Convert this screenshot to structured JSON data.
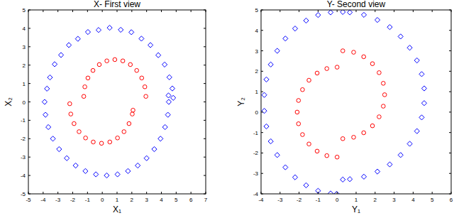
{
  "chart_data": [
    {
      "type": "scatter",
      "title": "X- First view",
      "x_label": "X₁",
      "y_label": "X₂",
      "xlim": [
        -5,
        7
      ],
      "ylim": [
        -5,
        5
      ],
      "xticks": [
        -5,
        -4,
        -3,
        -2,
        -1,
        0,
        1,
        2,
        3,
        4,
        5,
        6,
        7
      ],
      "yticks": [
        -5,
        -4,
        -3,
        -2,
        -1,
        0,
        1,
        2,
        3,
        4,
        5
      ],
      "grid": false,
      "series": [
        {
          "color": "#0000ff",
          "marker": "diamond",
          "x": [
            -3.74,
            -3.54,
            -3.22,
            -2.79,
            -2.26,
            -1.65,
            -0.97,
            -0.25,
            0.5,
            1.25,
            1.97,
            2.65,
            3.26,
            3.79,
            4.22,
            4.54,
            4.74,
            4.8,
            -3.9,
            -3.84,
            -3.65,
            -3.34,
            -2.92,
            -2.4,
            -1.8,
            -1.14,
            -0.43,
            0.3,
            1.03,
            1.74,
            2.4,
            3.0,
            3.52,
            3.94,
            4.25,
            4.44,
            4.5,
            4.48
          ],
          "values": [
            0.72,
            1.33,
            2.05,
            2.55,
            3.09,
            3.43,
            3.8,
            3.91,
            4.03,
            3.92,
            3.79,
            3.44,
            3.09,
            2.54,
            2.03,
            1.34,
            0.73,
            0.22,
            0,
            -0.7,
            -1.37,
            -2.0,
            -2.57,
            -3.06,
            -3.46,
            -3.76,
            -3.94,
            -4.0,
            -3.94,
            -3.76,
            -3.46,
            -3.06,
            -2.57,
            -2.0,
            -1.37,
            -0.7,
            0,
            0.35
          ]
        },
        {
          "color": "#ff0000",
          "marker": "circle",
          "x": [
            -1.25,
            -1.18,
            -0.97,
            -0.63,
            -0.2,
            0.31,
            0.85,
            1.39,
            1.9,
            2.33,
            2.67,
            2.88,
            2.95,
            -2.2,
            -2.13,
            -1.91,
            -1.57,
            -1.13,
            -0.61,
            -0.05,
            0.51,
            1.03,
            1.47,
            1.81,
            2.03,
            2.08
          ],
          "values": [
            0.3,
            0.82,
            1.3,
            1.71,
            2.03,
            2.23,
            2.3,
            2.23,
            2.03,
            1.71,
            1.3,
            0.82,
            0.3,
            -0.1,
            -0.66,
            -1.18,
            -1.62,
            -1.96,
            -2.18,
            -2.25,
            -2.18,
            -1.96,
            -1.62,
            -1.18,
            -0.66,
            -0.45
          ]
        }
      ]
    },
    {
      "type": "scatter",
      "title": "Y- Second view",
      "x_label": "Y₁",
      "y_label": "Y₂",
      "xlim": [
        -4,
        6
      ],
      "ylim": [
        -4,
        5
      ],
      "xticks": [
        -4,
        -3,
        -2,
        -1,
        0,
        1,
        2,
        3,
        4,
        5,
        6
      ],
      "yticks": [
        -4,
        -3,
        -2,
        -1,
        0,
        1,
        2,
        3,
        4,
        5
      ],
      "grid": false,
      "series": [
        {
          "color": "#0000ff",
          "marker": "diamond",
          "x": [
            -0.34,
            -1.0,
            -1.63,
            -2.21,
            -2.72,
            -3.15,
            -3.49,
            -3.72,
            -3.83,
            -3.83,
            -3.72,
            -3.49,
            -3.15,
            -2.72,
            -2.21,
            -1.63,
            -1.0,
            -0.34,
            -0.02,
            0.3,
            0.67,
            1.41,
            2.12,
            2.77,
            3.34,
            3.82,
            4.2,
            4.45,
            4.58,
            4.58,
            4.45,
            4.2,
            3.82,
            3.34,
            2.77,
            2.12,
            1.41,
            0.67,
            0.3
          ],
          "values": [
            4.88,
            4.75,
            4.48,
            4.09,
            3.6,
            3.0,
            2.33,
            1.6,
            0.84,
            0.06,
            -0.7,
            -1.43,
            -2.1,
            -2.7,
            -3.19,
            -3.58,
            -3.85,
            -3.98,
            -4.0,
            4.9,
            4.88,
            4.76,
            4.51,
            4.16,
            3.7,
            3.15,
            2.53,
            1.86,
            1.16,
            0.44,
            -0.26,
            -0.93,
            -1.55,
            -2.1,
            -2.56,
            -2.91,
            -3.16,
            -3.28,
            -3.3
          ]
        },
        {
          "color": "#ff0000",
          "marker": "circle",
          "x": [
            0,
            -0.54,
            -1.05,
            -1.48,
            -1.82,
            -2.03,
            -2.1,
            -2.03,
            -1.82,
            -1.48,
            -1.05,
            -0.54,
            0,
            0.3,
            0.87,
            1.4,
            1.86,
            2.21,
            2.43,
            2.5,
            2.43,
            2.21,
            1.86,
            1.4,
            0.87,
            0.3
          ],
          "values": [
            2.2,
            2.13,
            1.91,
            1.56,
            1.1,
            0.57,
            0,
            -0.57,
            -1.1,
            -1.56,
            -1.91,
            -2.13,
            -2.2,
            3.0,
            2.93,
            2.71,
            2.37,
            1.93,
            1.41,
            0.85,
            0.29,
            -0.23,
            -0.67,
            -1.01,
            -1.23,
            -1.3
          ]
        }
      ]
    }
  ]
}
